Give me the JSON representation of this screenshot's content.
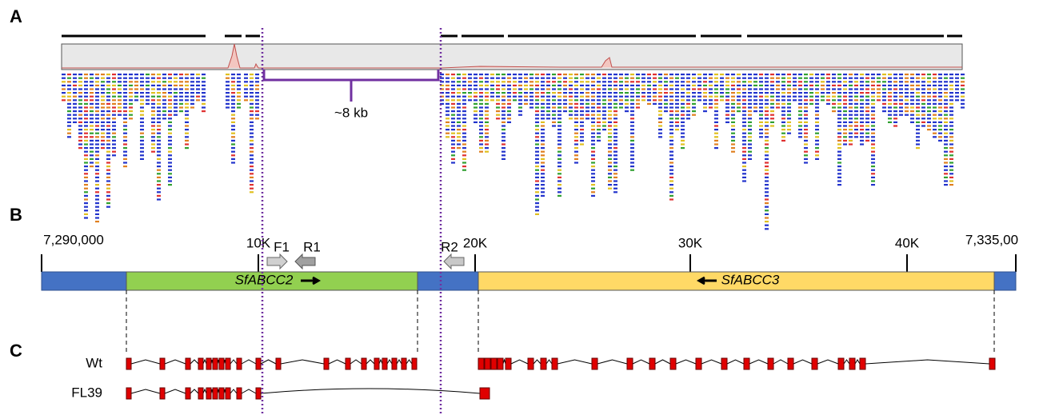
{
  "panel_labels": [
    "A",
    "B",
    "C"
  ],
  "annotation": "~8 kb",
  "ruler": {
    "labels": [
      "7,290,000",
      "10K",
      "20K",
      "30K",
      "40K",
      "7,335,00"
    ]
  },
  "genes": [
    "SfABCC2",
    "SfABCC3"
  ],
  "primers": [
    "F1",
    "R1",
    "R2"
  ],
  "tracks": [
    "Wt",
    "FL39"
  ]
}
